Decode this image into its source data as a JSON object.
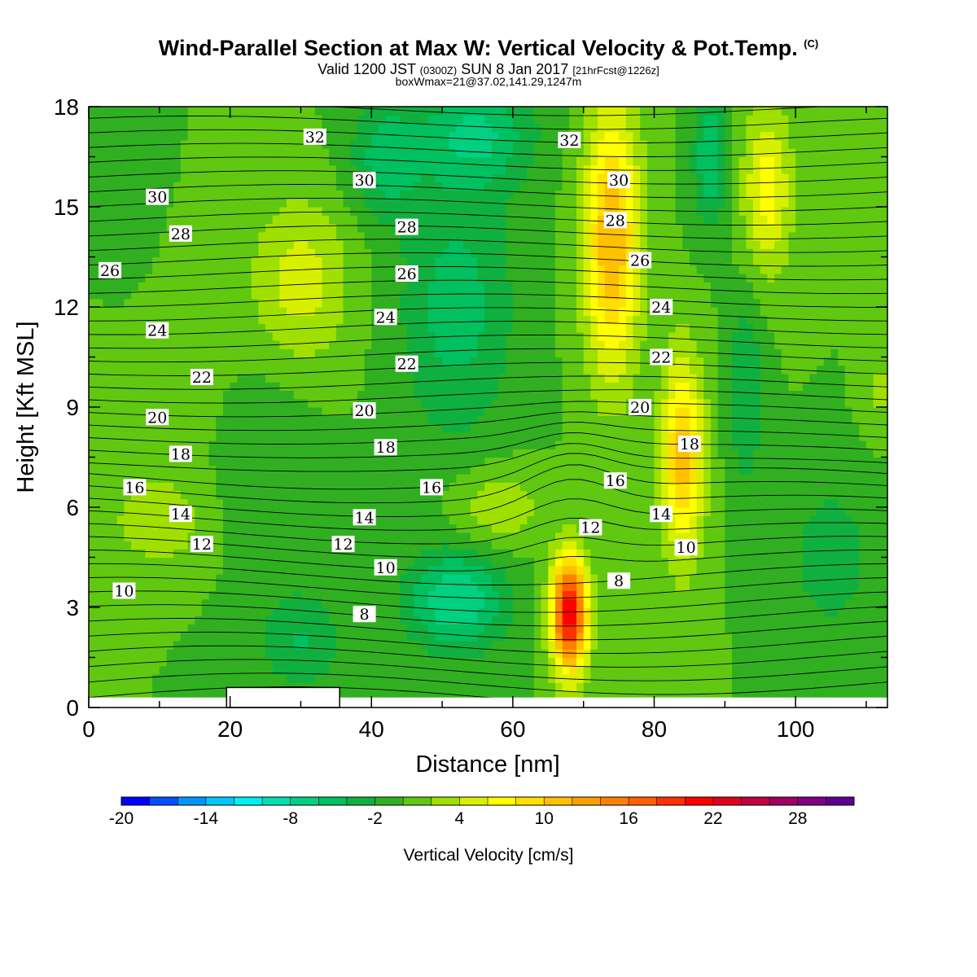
{
  "header": {
    "title": "Wind-Parallel Section at Max W: Vertical Velocity & Pot.Temp.",
    "copyright": "(C)",
    "valid_prefix": "Valid 1200 JST",
    "valid_utc": "(0300Z)",
    "valid_date": "SUN 8 Jan 2017",
    "forecast_info": "[21hrFcst@1226z]",
    "box_info": "boxWmax=21@37.02,141.29,1247m"
  },
  "chart_data": {
    "type": "heatmap",
    "xlabel": "Distance [nm]",
    "ylabel": "Height [Kft MSL]",
    "xlim": [
      0,
      113
    ],
    "ylim": [
      0,
      18
    ],
    "xticks": [
      0,
      20,
      40,
      60,
      80,
      100
    ],
    "yticks": [
      0,
      3,
      6,
      9,
      12,
      15,
      18
    ],
    "colorbar": {
      "label": "Vertical Velocity [cm/s]",
      "ticks": [
        -20,
        -14,
        -8,
        -2,
        4,
        10,
        16,
        22,
        28
      ],
      "min": -20,
      "max": 32,
      "step": 2,
      "colors": [
        "#0000ff",
        "#0050ff",
        "#0096ff",
        "#00c8ff",
        "#00f0f0",
        "#00e0b0",
        "#00d080",
        "#00c060",
        "#10b040",
        "#30b020",
        "#60c810",
        "#a0e000",
        "#d8f000",
        "#ffff00",
        "#ffe000",
        "#ffc000",
        "#ffa000",
        "#ff8000",
        "#ff6000",
        "#ff3000",
        "#ff0000",
        "#e00020",
        "#c00040",
        "#a00060",
        "#800080",
        "#600090"
      ]
    },
    "velocity_cells": [
      {
        "x": 55,
        "y": 17.2,
        "sx": 8,
        "sy": 1.6,
        "v": -6
      },
      {
        "x": 42,
        "y": 16.5,
        "sx": 5,
        "sy": 1.8,
        "v": -5
      },
      {
        "x": 88,
        "y": 16.5,
        "sx": 2.5,
        "sy": 2,
        "v": -6
      },
      {
        "x": 74,
        "y": 14,
        "sx": 4,
        "sy": 4,
        "v": 12
      },
      {
        "x": 96,
        "y": 15.5,
        "sx": 3.5,
        "sy": 2.5,
        "v": 7
      },
      {
        "x": 30,
        "y": 12.8,
        "sx": 7,
        "sy": 2.5,
        "v": 5
      },
      {
        "x": 5,
        "y": 14.5,
        "sx": 4,
        "sy": 2.5,
        "v": -2
      },
      {
        "x": 52,
        "y": 12,
        "sx": 8,
        "sy": 4,
        "v": -5
      },
      {
        "x": 84,
        "y": 7.5,
        "sx": 3,
        "sy": 3,
        "v": 11
      },
      {
        "x": 10,
        "y": 10,
        "sx": 8,
        "sy": 3,
        "v": 2
      },
      {
        "x": 25,
        "y": 7,
        "sx": 7,
        "sy": 3,
        "v": -2
      },
      {
        "x": 58,
        "y": 6,
        "sx": 6,
        "sy": 1.2,
        "v": 4
      },
      {
        "x": 10,
        "y": 5.5,
        "sx": 8,
        "sy": 1.4,
        "v": 3
      },
      {
        "x": 52,
        "y": 3.2,
        "sx": 7,
        "sy": 1.5,
        "v": -8
      },
      {
        "x": 68,
        "y": 2.8,
        "sx": 2.5,
        "sy": 1.7,
        "v": 22
      },
      {
        "x": 30,
        "y": 2.0,
        "sx": 6,
        "sy": 1.5,
        "v": -4
      },
      {
        "x": 105,
        "y": 4.5,
        "sx": 5,
        "sy": 2,
        "v": -4
      },
      {
        "x": 93,
        "y": 9.5,
        "sx": 2.5,
        "sy": 3,
        "v": -4
      },
      {
        "x": 112,
        "y": 9.5,
        "sx": 2,
        "sy": 1,
        "v": 3
      }
    ],
    "potential_temperature_labels": [
      {
        "text": "32",
        "x": 32,
        "y": 17.1
      },
      {
        "text": "32",
        "x": 68,
        "y": 17.0
      },
      {
        "text": "30",
        "x": 9.7,
        "y": 15.3
      },
      {
        "text": "30",
        "x": 39,
        "y": 15.8
      },
      {
        "text": "30",
        "x": 75,
        "y": 15.8
      },
      {
        "text": "28",
        "x": 13,
        "y": 14.2
      },
      {
        "text": "28",
        "x": 45,
        "y": 14.4
      },
      {
        "text": "28",
        "x": 74.5,
        "y": 14.6
      },
      {
        "text": "26",
        "x": 3,
        "y": 13.1
      },
      {
        "text": "26",
        "x": 45,
        "y": 13.0
      },
      {
        "text": "26",
        "x": 78,
        "y": 13.4
      },
      {
        "text": "24",
        "x": 9.7,
        "y": 11.3
      },
      {
        "text": "24",
        "x": 42,
        "y": 11.7
      },
      {
        "text": "24",
        "x": 81,
        "y": 12.0
      },
      {
        "text": "22",
        "x": 16,
        "y": 9.9
      },
      {
        "text": "22",
        "x": 45,
        "y": 10.3
      },
      {
        "text": "22",
        "x": 81,
        "y": 10.5
      },
      {
        "text": "20",
        "x": 9.7,
        "y": 8.7
      },
      {
        "text": "20",
        "x": 39,
        "y": 8.9
      },
      {
        "text": "20",
        "x": 78,
        "y": 9.0
      },
      {
        "text": "18",
        "x": 13,
        "y": 7.6
      },
      {
        "text": "18",
        "x": 42,
        "y": 7.8
      },
      {
        "text": "18",
        "x": 85,
        "y": 7.9
      },
      {
        "text": "16",
        "x": 6.5,
        "y": 6.6
      },
      {
        "text": "16",
        "x": 48.5,
        "y": 6.6
      },
      {
        "text": "16",
        "x": 74.5,
        "y": 6.8
      },
      {
        "text": "14",
        "x": 13,
        "y": 5.8
      },
      {
        "text": "14",
        "x": 39,
        "y": 5.7
      },
      {
        "text": "14",
        "x": 81,
        "y": 5.8
      },
      {
        "text": "12",
        "x": 16,
        "y": 4.9
      },
      {
        "text": "12",
        "x": 36,
        "y": 4.9
      },
      {
        "text": "12",
        "x": 71,
        "y": 5.4
      },
      {
        "text": "10",
        "x": 5,
        "y": 3.5
      },
      {
        "text": "10",
        "x": 42,
        "y": 4.2
      },
      {
        "text": "10",
        "x": 84.5,
        "y": 4.8
      },
      {
        "text": "8",
        "x": 39,
        "y": 2.8
      },
      {
        "text": "8",
        "x": 75,
        "y": 3.8
      }
    ],
    "terrain_gap": {
      "x_start": 19.5,
      "x_end": 35.5,
      "height": 0.6
    }
  },
  "colors": {
    "background": "#30b020",
    "contour": "#000000",
    "label_box": "#ffffff"
  }
}
